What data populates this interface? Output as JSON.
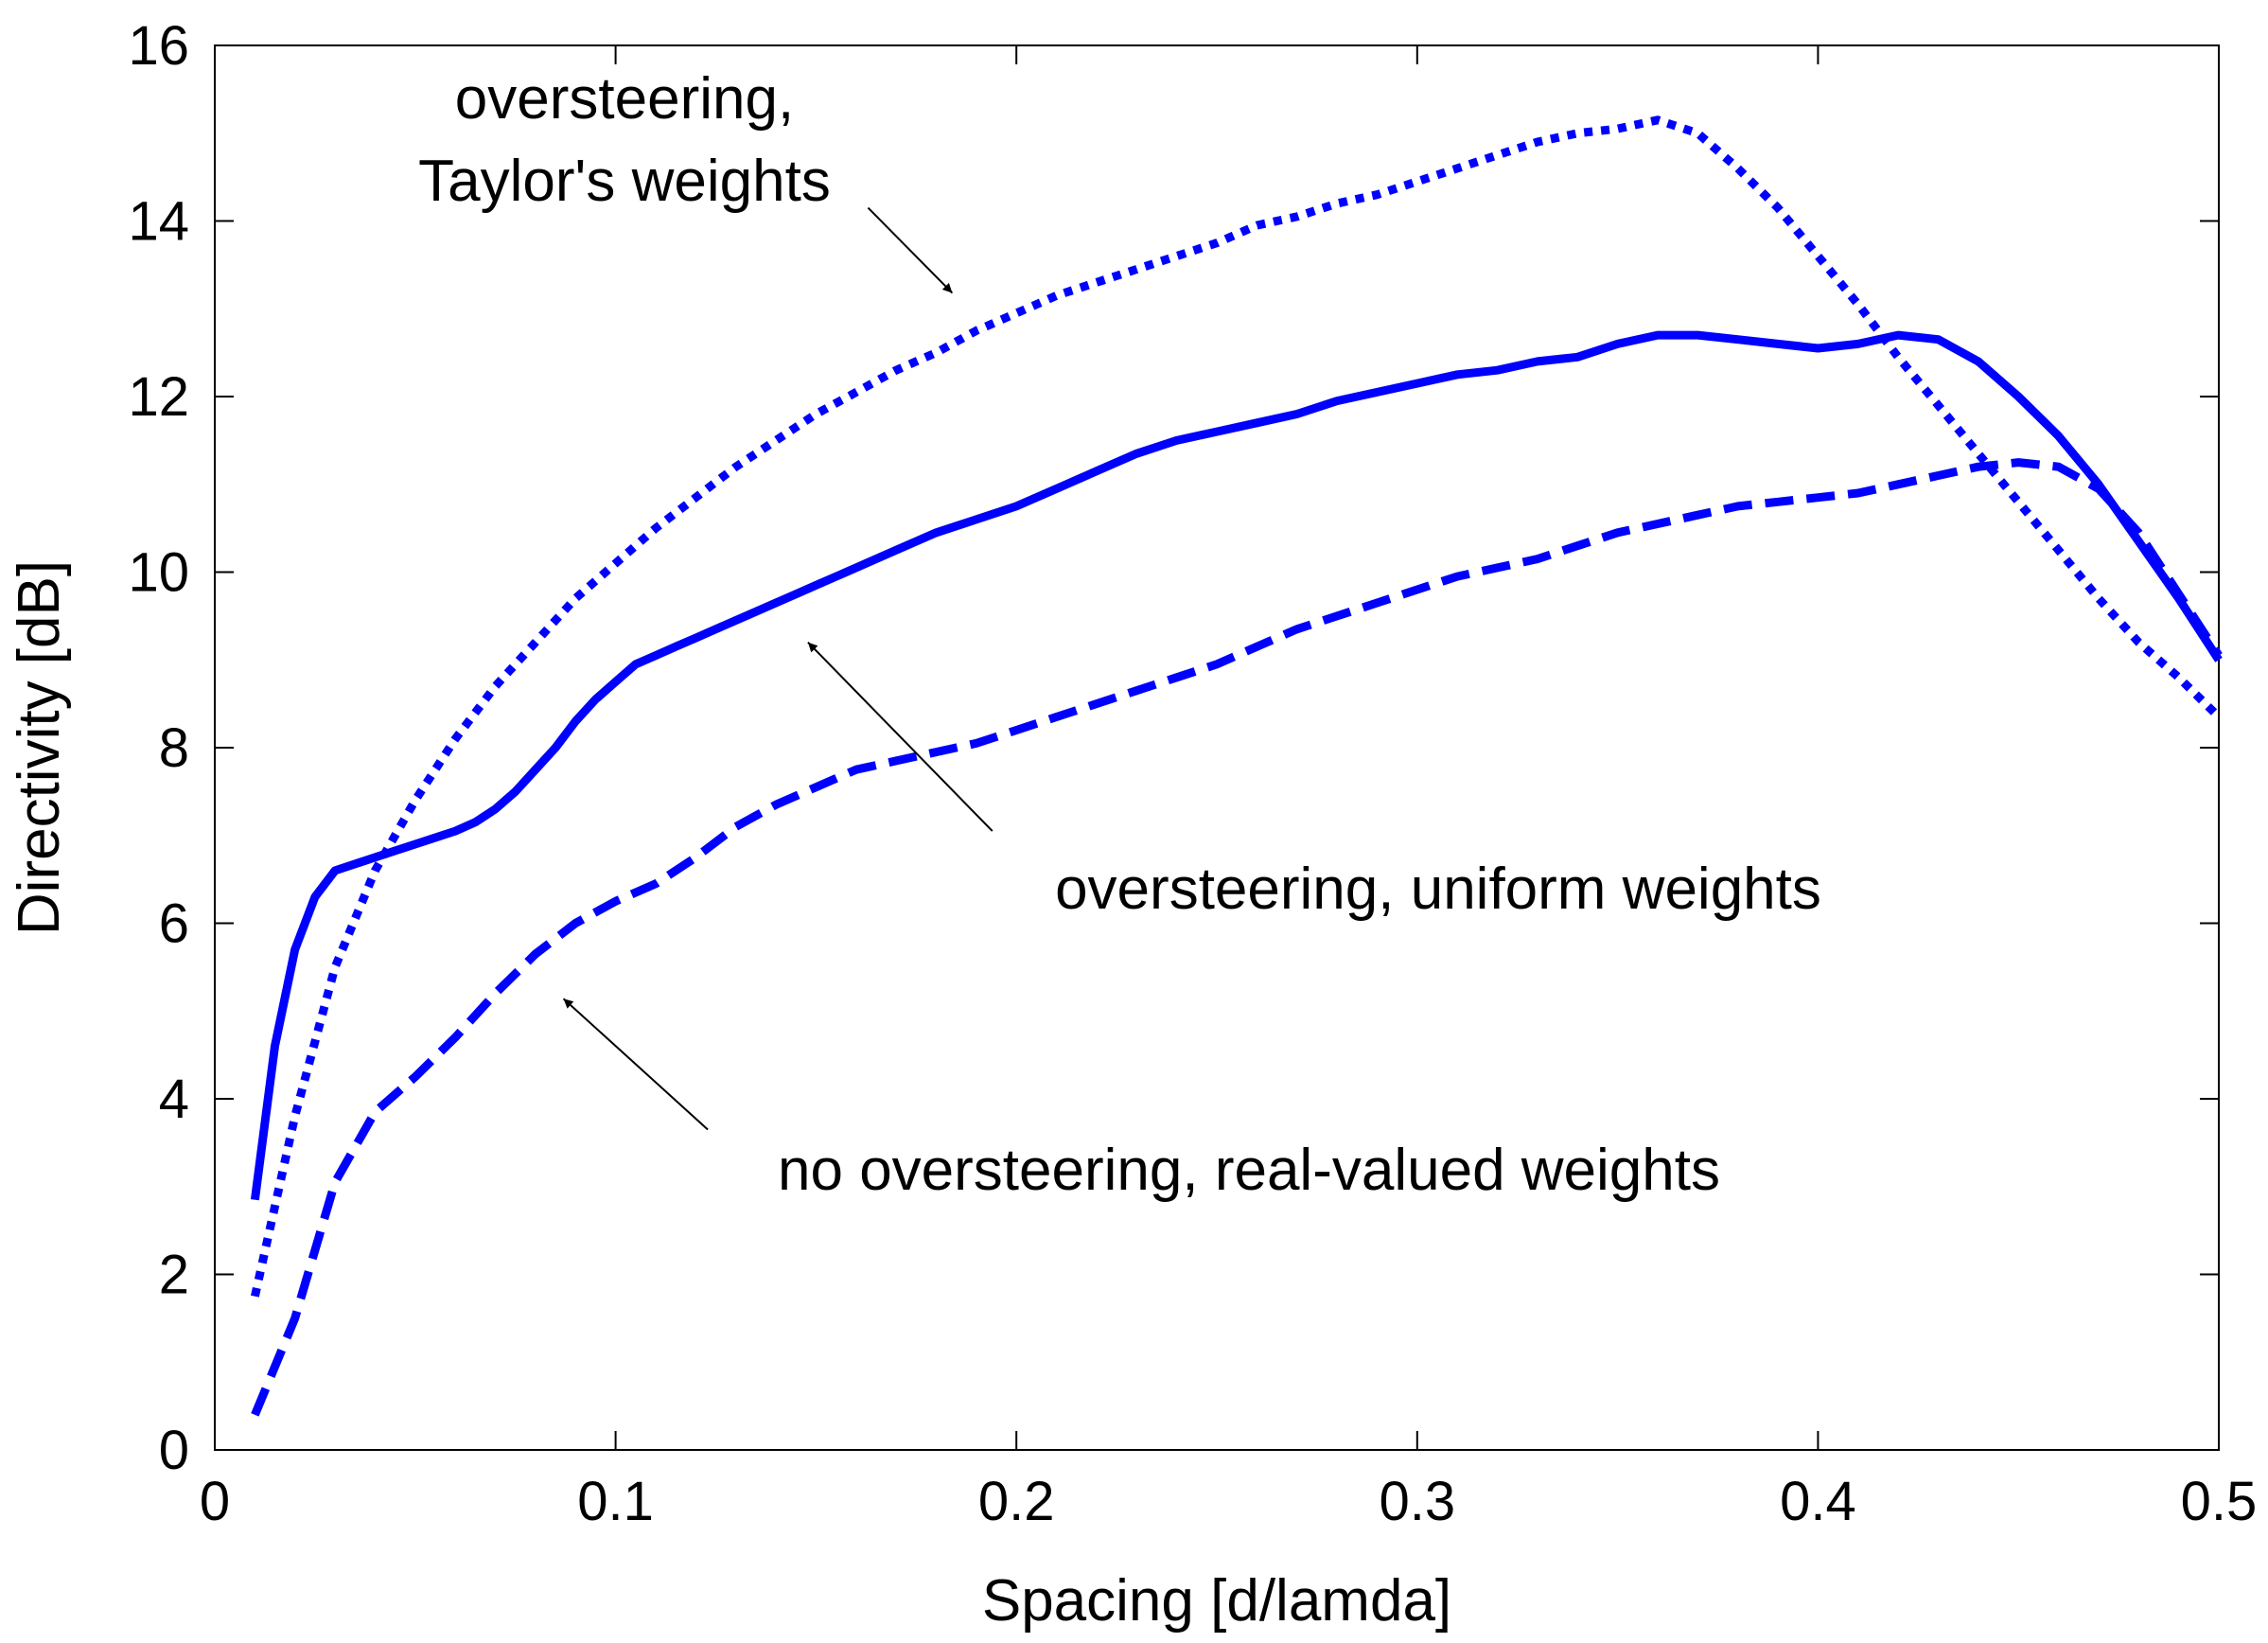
{
  "chart_data": {
    "type": "line",
    "title": "",
    "xlabel": "Spacing [d/lamda]",
    "ylabel": "Directivity [dB]",
    "xlim": [
      0,
      0.5
    ],
    "ylim": [
      0,
      16
    ],
    "xticks": [
      0,
      0.1,
      0.2,
      0.3,
      0.4,
      0.5
    ],
    "xtick_labels": [
      "0",
      "0.1",
      "0.2",
      "0.3",
      "0.4",
      "0.5"
    ],
    "yticks": [
      0,
      2,
      4,
      6,
      8,
      10,
      12,
      14,
      16
    ],
    "ytick_labels": [
      "0",
      "2",
      "4",
      "6",
      "8",
      "10",
      "12",
      "14",
      "16"
    ],
    "grid": false,
    "line_color": "#0000ff",
    "series": [
      {
        "name": "oversteering, Taylor's weights",
        "style": "dotted",
        "x": [
          0.01,
          0.02,
          0.03,
          0.04,
          0.05,
          0.06,
          0.07,
          0.08,
          0.09,
          0.1,
          0.11,
          0.12,
          0.13,
          0.14,
          0.15,
          0.16,
          0.17,
          0.18,
          0.19,
          0.2,
          0.21,
          0.22,
          0.23,
          0.24,
          0.25,
          0.26,
          0.27,
          0.28,
          0.29,
          0.3,
          0.31,
          0.32,
          0.33,
          0.34,
          0.35,
          0.36,
          0.37,
          0.38,
          0.39,
          0.4,
          0.41,
          0.42,
          0.43,
          0.44,
          0.45,
          0.46,
          0.47,
          0.48,
          0.49,
          0.5
        ],
        "y": [
          1.75,
          3.8,
          5.5,
          6.6,
          7.4,
          8.1,
          8.7,
          9.2,
          9.7,
          10.1,
          10.5,
          10.85,
          11.2,
          11.5,
          11.8,
          12.05,
          12.3,
          12.5,
          12.75,
          12.95,
          13.15,
          13.3,
          13.45,
          13.6,
          13.75,
          13.95,
          14.05,
          14.2,
          14.3,
          14.45,
          14.6,
          14.75,
          14.9,
          15.0,
          15.05,
          15.15,
          15.0,
          14.6,
          14.15,
          13.6,
          13.05,
          12.45,
          11.9,
          11.35,
          10.8,
          10.25,
          9.7,
          9.2,
          8.8,
          8.35
        ]
      },
      {
        "name": "oversteering, uniform weights",
        "style": "solid",
        "x": [
          0.01,
          0.015,
          0.02,
          0.025,
          0.03,
          0.04,
          0.05,
          0.06,
          0.065,
          0.07,
          0.075,
          0.08,
          0.085,
          0.09,
          0.095,
          0.1,
          0.105,
          0.11,
          0.115,
          0.12,
          0.125,
          0.13,
          0.135,
          0.14,
          0.145,
          0.15,
          0.16,
          0.17,
          0.18,
          0.19,
          0.2,
          0.21,
          0.22,
          0.23,
          0.24,
          0.25,
          0.26,
          0.27,
          0.28,
          0.29,
          0.3,
          0.31,
          0.32,
          0.33,
          0.34,
          0.35,
          0.36,
          0.37,
          0.38,
          0.39,
          0.4,
          0.41,
          0.42,
          0.43,
          0.44,
          0.45,
          0.46,
          0.47,
          0.48,
          0.49,
          0.5
        ],
        "y": [
          2.85,
          4.6,
          5.7,
          6.3,
          6.6,
          6.75,
          6.9,
          7.05,
          7.15,
          7.3,
          7.5,
          7.75,
          8.0,
          8.3,
          8.55,
          8.75,
          8.95,
          9.05,
          9.15,
          9.25,
          9.35,
          9.45,
          9.55,
          9.65,
          9.75,
          9.85,
          10.05,
          10.25,
          10.45,
          10.6,
          10.75,
          10.95,
          11.15,
          11.35,
          11.5,
          11.6,
          11.7,
          11.8,
          11.95,
          12.05,
          12.15,
          12.25,
          12.3,
          12.4,
          12.45,
          12.6,
          12.7,
          12.7,
          12.65,
          12.6,
          12.55,
          12.6,
          12.7,
          12.65,
          12.4,
          12.0,
          11.55,
          11.0,
          10.35,
          9.7,
          9.0
        ]
      },
      {
        "name": "no oversteering, real-valued weights",
        "style": "dashed",
        "x": [
          0.01,
          0.02,
          0.03,
          0.04,
          0.05,
          0.06,
          0.07,
          0.08,
          0.09,
          0.1,
          0.11,
          0.12,
          0.13,
          0.14,
          0.15,
          0.16,
          0.17,
          0.18,
          0.19,
          0.2,
          0.21,
          0.22,
          0.23,
          0.24,
          0.25,
          0.26,
          0.27,
          0.28,
          0.29,
          0.3,
          0.31,
          0.32,
          0.33,
          0.34,
          0.35,
          0.36,
          0.37,
          0.38,
          0.39,
          0.4,
          0.41,
          0.42,
          0.43,
          0.44,
          0.45,
          0.46,
          0.47,
          0.48,
          0.49,
          0.5
        ],
        "y": [
          0.4,
          1.5,
          3.05,
          3.85,
          4.25,
          4.7,
          5.2,
          5.65,
          6.0,
          6.25,
          6.45,
          6.75,
          7.1,
          7.35,
          7.55,
          7.75,
          7.85,
          7.95,
          8.05,
          8.2,
          8.35,
          8.5,
          8.65,
          8.8,
          8.95,
          9.15,
          9.35,
          9.5,
          9.65,
          9.8,
          9.95,
          10.05,
          10.15,
          10.3,
          10.45,
          10.55,
          10.65,
          10.75,
          10.8,
          10.85,
          10.9,
          11.0,
          11.1,
          11.2,
          11.25,
          11.2,
          10.95,
          10.45,
          9.75,
          9.05
        ]
      }
    ],
    "annotations": [
      {
        "id": "taylor",
        "lines": [
          "oversteering,",
          "Taylor's weights"
        ],
        "arrow_from": [
          0.163,
          14.15
        ],
        "arrow_to": [
          0.184,
          13.18
        ]
      },
      {
        "id": "uniform",
        "lines": [
          "oversteering, uniform weights"
        ],
        "arrow_from": [
          0.194,
          7.05
        ],
        "arrow_to": [
          0.148,
          9.2
        ]
      },
      {
        "id": "real",
        "lines": [
          "no oversteering, real-valued weights"
        ],
        "arrow_from": [
          0.123,
          3.65
        ],
        "arrow_to": [
          0.087,
          5.14
        ]
      }
    ]
  }
}
